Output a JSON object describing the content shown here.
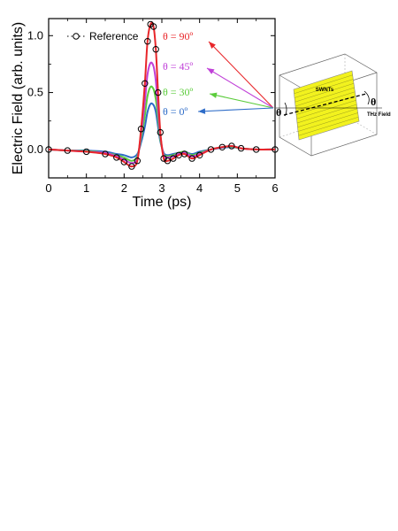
{
  "chart_data": {
    "type": "line",
    "xlabel": "Time (ps)",
    "ylabel": "Electric Field (arb. units)",
    "xlim": [
      0,
      6
    ],
    "ylim": [
      -0.25,
      1.15
    ],
    "xticks": [
      "0",
      "1",
      "2",
      "3",
      "4",
      "5",
      "6"
    ],
    "yticks": [
      "0.0",
      "0.5",
      "1.0"
    ],
    "grid": false,
    "legend": {
      "position": "top-left",
      "entries": [
        "Reference"
      ]
    },
    "series": [
      {
        "name": "Reference",
        "style": "open-circles",
        "color": "#000000",
        "x": [
          0,
          0.5,
          1.0,
          1.5,
          1.8,
          2.0,
          2.2,
          2.35,
          2.45,
          2.55,
          2.62,
          2.7,
          2.78,
          2.84,
          2.9,
          2.96,
          3.05,
          3.15,
          3.3,
          3.45,
          3.6,
          3.8,
          4.0,
          4.3,
          4.6,
          4.85,
          5.1,
          5.5,
          6.0
        ],
        "y": [
          0.0,
          -0.01,
          -0.02,
          -0.04,
          -0.07,
          -0.11,
          -0.15,
          -0.1,
          0.18,
          0.58,
          0.95,
          1.1,
          1.08,
          0.88,
          0.5,
          0.15,
          -0.08,
          -0.1,
          -0.08,
          -0.05,
          -0.04,
          -0.08,
          -0.05,
          0.0,
          0.02,
          0.03,
          0.01,
          0.0,
          0.0
        ]
      },
      {
        "name": "θ = 90º",
        "color": "#e8262a",
        "x": [
          0,
          0.5,
          1.0,
          1.5,
          1.8,
          2.0,
          2.2,
          2.35,
          2.45,
          2.55,
          2.62,
          2.7,
          2.78,
          2.84,
          2.9,
          2.96,
          3.05,
          3.15,
          3.3,
          3.45,
          3.6,
          3.8,
          4.0,
          4.3,
          4.6,
          4.85,
          5.1,
          5.5,
          6.0
        ],
        "y": [
          0.0,
          -0.01,
          -0.02,
          -0.04,
          -0.07,
          -0.11,
          -0.15,
          -0.1,
          0.18,
          0.58,
          0.95,
          1.1,
          1.08,
          0.88,
          0.5,
          0.15,
          -0.08,
          -0.1,
          -0.08,
          -0.05,
          -0.04,
          -0.08,
          -0.05,
          0.0,
          0.02,
          0.03,
          0.01,
          0.0,
          0.0
        ]
      },
      {
        "name": "θ = 45º",
        "color": "#c040d8",
        "x": [
          0,
          0.5,
          1.0,
          1.5,
          1.8,
          2.0,
          2.2,
          2.35,
          2.45,
          2.55,
          2.62,
          2.7,
          2.78,
          2.84,
          2.9,
          2.96,
          3.05,
          3.15,
          3.3,
          3.45,
          3.6,
          3.8,
          4.0,
          4.3,
          4.6,
          4.85,
          5.1,
          5.5,
          6.0
        ],
        "y": [
          0.0,
          -0.01,
          -0.02,
          -0.03,
          -0.06,
          -0.09,
          -0.12,
          -0.08,
          0.14,
          0.42,
          0.66,
          0.76,
          0.73,
          0.6,
          0.36,
          0.12,
          -0.05,
          -0.07,
          -0.06,
          -0.04,
          -0.03,
          -0.06,
          -0.04,
          0.0,
          0.02,
          0.03,
          0.01,
          0.0,
          0.0
        ]
      },
      {
        "name": "θ = 30º",
        "color": "#5ccc3c",
        "x": [
          0,
          0.5,
          1.0,
          1.5,
          1.8,
          2.0,
          2.2,
          2.35,
          2.45,
          2.55,
          2.62,
          2.7,
          2.78,
          2.84,
          2.9,
          2.96,
          3.05,
          3.15,
          3.3,
          3.45,
          3.6,
          3.8,
          4.0,
          4.3,
          4.6,
          4.85,
          5.1,
          5.5,
          6.0
        ],
        "y": [
          0.0,
          -0.01,
          -0.015,
          -0.03,
          -0.05,
          -0.07,
          -0.1,
          -0.06,
          0.1,
          0.3,
          0.47,
          0.55,
          0.53,
          0.44,
          0.27,
          0.09,
          -0.04,
          -0.06,
          -0.05,
          -0.03,
          -0.02,
          -0.05,
          -0.03,
          0.0,
          0.02,
          0.025,
          0.01,
          0.0,
          0.0
        ]
      },
      {
        "name": "θ = 0º",
        "color": "#2e6cc8",
        "x": [
          0,
          0.5,
          1.0,
          1.5,
          1.8,
          2.0,
          2.2,
          2.35,
          2.45,
          2.55,
          2.62,
          2.7,
          2.78,
          2.84,
          2.9,
          2.96,
          3.05,
          3.15,
          3.3,
          3.45,
          3.6,
          3.8,
          4.0,
          4.3,
          4.6,
          4.85,
          5.1,
          5.5,
          6.0
        ],
        "y": [
          0.0,
          -0.01,
          -0.01,
          -0.02,
          -0.04,
          -0.05,
          -0.07,
          -0.04,
          0.06,
          0.2,
          0.33,
          0.4,
          0.39,
          0.33,
          0.2,
          0.07,
          -0.03,
          -0.05,
          -0.04,
          -0.03,
          -0.02,
          -0.04,
          -0.02,
          0.0,
          0.015,
          0.02,
          0.01,
          0.0,
          0.0
        ]
      }
    ],
    "annotations": [
      {
        "text": "θ = 90º",
        "color": "#e8262a"
      },
      {
        "text": "θ = 45º",
        "color": "#c040d8"
      },
      {
        "text": "θ = 30º",
        "color": "#5ccc3c"
      },
      {
        "text": "θ = 0º",
        "color": "#2e6cc8"
      }
    ]
  },
  "inset": {
    "sample_label": "SWNTs",
    "field_label": "THz Field",
    "theta_symbol": "θ",
    "sample_color": "#f2f21e"
  }
}
